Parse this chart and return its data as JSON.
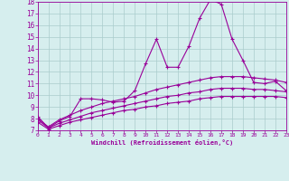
{
  "x": [
    0,
    1,
    2,
    3,
    4,
    5,
    6,
    7,
    8,
    9,
    10,
    11,
    12,
    13,
    14,
    15,
    16,
    17,
    18,
    19,
    20,
    21,
    22,
    23
  ],
  "line1": [
    8.2,
    7.2,
    7.8,
    8.2,
    9.7,
    9.7,
    9.6,
    9.4,
    9.5,
    10.4,
    12.7,
    14.8,
    12.4,
    12.4,
    14.2,
    16.6,
    18.2,
    17.8,
    14.8,
    13.0,
    11.1,
    11.0,
    11.2,
    10.4
  ],
  "line2": [
    8.0,
    7.3,
    7.9,
    8.3,
    8.7,
    9.0,
    9.3,
    9.5,
    9.7,
    9.9,
    10.2,
    10.5,
    10.7,
    10.9,
    11.1,
    11.3,
    11.5,
    11.6,
    11.6,
    11.6,
    11.5,
    11.4,
    11.3,
    11.1
  ],
  "line3": [
    7.9,
    7.2,
    7.6,
    7.9,
    8.2,
    8.5,
    8.7,
    8.9,
    9.1,
    9.3,
    9.5,
    9.7,
    9.9,
    10.0,
    10.2,
    10.3,
    10.5,
    10.6,
    10.6,
    10.6,
    10.5,
    10.5,
    10.4,
    10.3
  ],
  "line4": [
    7.7,
    7.1,
    7.4,
    7.7,
    7.9,
    8.1,
    8.3,
    8.5,
    8.7,
    8.8,
    9.0,
    9.1,
    9.3,
    9.4,
    9.5,
    9.7,
    9.8,
    9.9,
    9.9,
    9.9,
    9.9,
    9.9,
    9.9,
    9.8
  ],
  "line_color": "#990099",
  "bg_color": "#d6eeee",
  "grid_color": "#aacccc",
  "xlabel": "Windchill (Refroidissement éolien,°C)",
  "xlim": [
    0,
    23
  ],
  "ylim": [
    7,
    18
  ],
  "yticks": [
    7,
    8,
    9,
    10,
    11,
    12,
    13,
    14,
    15,
    16,
    17,
    18
  ],
  "xticks": [
    0,
    1,
    2,
    3,
    4,
    5,
    6,
    7,
    8,
    9,
    10,
    11,
    12,
    13,
    14,
    15,
    16,
    17,
    18,
    19,
    20,
    21,
    22,
    23
  ]
}
